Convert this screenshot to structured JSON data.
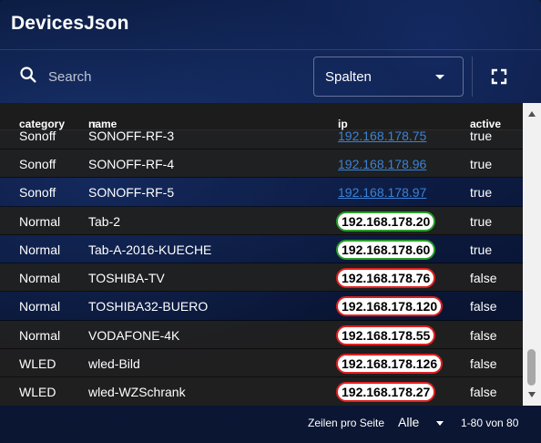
{
  "widget": {
    "title": "DevicesJson"
  },
  "toolbar": {
    "search_placeholder": "Search",
    "columns_select_value": "Spalten",
    "fullscreen_icon": "fullscreen-icon"
  },
  "table": {
    "columns": [
      {
        "key": "category",
        "label": "category"
      },
      {
        "key": "name",
        "label": "name",
        "sort": "ascending"
      },
      {
        "key": "ip",
        "label": "ip"
      },
      {
        "key": "active",
        "label": "active"
      }
    ],
    "rows": [
      {
        "category": "Sonoff",
        "name": "SONOFF-RF-3",
        "ip": "192.168.178.75",
        "ip_style": "link",
        "active": "true"
      },
      {
        "category": "Sonoff",
        "name": "SONOFF-RF-4",
        "ip": "192.168.178.96",
        "ip_style": "link",
        "active": "true"
      },
      {
        "category": "Sonoff",
        "name": "SONOFF-RF-5",
        "ip": "192.168.178.97",
        "ip_style": "link",
        "active": "true"
      },
      {
        "category": "Normal",
        "name": "Tab-2",
        "ip": "192.168.178.20",
        "ip_style": "green",
        "active": "true"
      },
      {
        "category": "Normal",
        "name": "Tab-A-2016-KUECHE",
        "ip": "192.168.178.60",
        "ip_style": "green",
        "active": "true"
      },
      {
        "category": "Normal",
        "name": "TOSHIBA-TV",
        "ip": "192.168.178.76",
        "ip_style": "red",
        "active": "false"
      },
      {
        "category": "Normal",
        "name": "TOSHIBA32-BUERO",
        "ip": "192.168.178.120",
        "ip_style": "red",
        "active": "false"
      },
      {
        "category": "Normal",
        "name": "VODAFONE-4K",
        "ip": "192.168.178.55",
        "ip_style": "red",
        "active": "false"
      },
      {
        "category": "WLED",
        "name": "wled-Bild",
        "ip": "192.168.178.126",
        "ip_style": "red",
        "active": "false"
      },
      {
        "category": "WLED",
        "name": "wled-WZSchrank",
        "ip": "192.168.178.27",
        "ip_style": "red",
        "active": "false"
      }
    ]
  },
  "footer": {
    "rows_per_page_label": "Zeilen pro Seite",
    "rows_per_page_value": "Alle",
    "range_text": "1-80 von 80"
  },
  "colors": {
    "link": "#3b82d6",
    "online_border": "#2a9d2a",
    "offline_border": "#e12020"
  }
}
